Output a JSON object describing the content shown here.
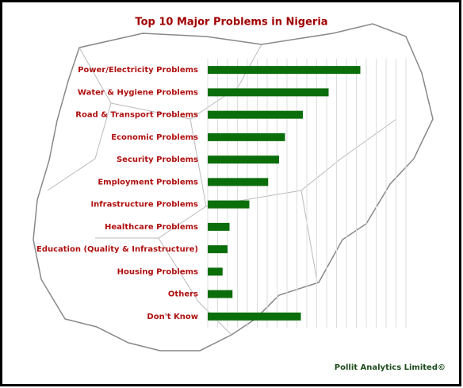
{
  "chart_data": {
    "type": "barh",
    "title": "Top 10 Major Problems in Nigeria",
    "categories": [
      "Power/Electricity Problems",
      "Water & Hygiene Problems",
      "Road & Transport Problems",
      "Economic Problems",
      "Security Problems",
      "Employment Problems",
      "Infrastructure Problems",
      "Healthcare Problems",
      "Education (Quality & Infrastructure)",
      "Housing Problems",
      "Others",
      "Don't Know"
    ],
    "values": [
      15.4,
      12.2,
      9.6,
      7.8,
      7.2,
      6.1,
      4.2,
      2.2,
      2.0,
      1.5,
      2.5,
      9.4
    ],
    "color": "#0a6e0a",
    "xlim": [
      0,
      20
    ],
    "xticks": [
      0,
      1,
      2,
      3,
      4,
      5,
      6,
      7,
      8,
      9,
      10,
      11,
      12,
      13,
      14,
      15,
      16,
      17,
      18,
      19,
      20
    ],
    "grid": true,
    "footer": "Pollit Analytics Limited©"
  }
}
